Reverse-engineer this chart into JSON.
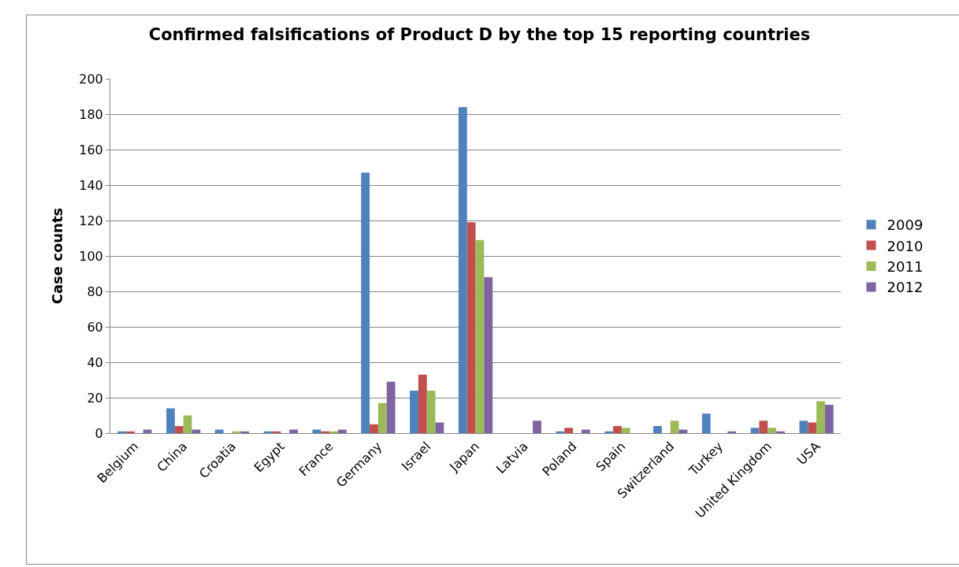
{
  "chart_data": {
    "type": "bar",
    "title": "Confirmed falsifications of Product D by the top 15 reporting countries",
    "ylabel": "Case counts",
    "categories": [
      "Belgium",
      "China",
      "Croatia",
      "Egypt",
      "France",
      "Germany",
      "Israel",
      "Japan",
      "Latvia",
      "Poland",
      "Spain",
      "Switzerland",
      "Turkey",
      "United Kingdom",
      "USA"
    ],
    "series": [
      {
        "name": "2009",
        "color": "#4f81bd",
        "values": [
          1,
          14,
          2,
          1,
          2,
          147,
          24,
          184,
          0,
          1,
          1,
          4,
          11,
          3,
          7
        ]
      },
      {
        "name": "2010",
        "color": "#c0504d",
        "values": [
          1,
          4,
          0,
          1,
          1,
          5,
          33,
          119,
          0,
          3,
          4,
          0,
          0,
          7,
          6
        ]
      },
      {
        "name": "2011",
        "color": "#9bbb59",
        "values": [
          0,
          10,
          1,
          0,
          1,
          17,
          24,
          109,
          0,
          0,
          3,
          7,
          0,
          3,
          18
        ]
      },
      {
        "name": "2012",
        "color": "#8064a2",
        "values": [
          2,
          2,
          1,
          2,
          2,
          29,
          6,
          88,
          7,
          2,
          0,
          2,
          1,
          1,
          16
        ]
      }
    ],
    "ylim": [
      0,
      200
    ],
    "yticks": [
      0,
      20,
      40,
      60,
      80,
      100,
      120,
      140,
      160,
      180,
      200
    ],
    "grid": "y",
    "legend": "right"
  }
}
